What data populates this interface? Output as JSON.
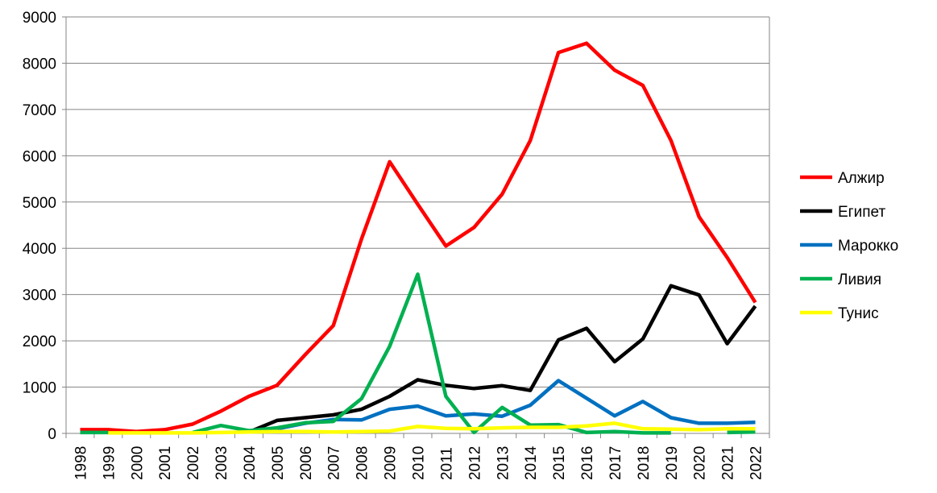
{
  "chart_data": {
    "type": "line",
    "title": "",
    "xlabel": "",
    "ylabel": "",
    "ylim": [
      0,
      9000
    ],
    "yticks": [
      0,
      1000,
      2000,
      3000,
      4000,
      5000,
      6000,
      7000,
      8000,
      9000
    ],
    "grid": true,
    "legend_position": "right",
    "categories": [
      "1998",
      "1999",
      "2000",
      "2001",
      "2002",
      "2003",
      "2004",
      "2005",
      "2006",
      "2007",
      "2008",
      "2009",
      "2010",
      "2011",
      "2012",
      "2013",
      "2014",
      "2015",
      "2016",
      "2017",
      "2018",
      "2019",
      "2020",
      "2021",
      "2022"
    ],
    "series": [
      {
        "name": "Алжир",
        "color": "#FF0000",
        "values": [
          80,
          80,
          40,
          80,
          200,
          480,
          800,
          1040,
          1700,
          2330,
          4200,
          5870,
          4950,
          4050,
          4450,
          5170,
          6330,
          8230,
          8430,
          7850,
          7520,
          6330,
          4680,
          3800,
          2830
        ]
      },
      {
        "name": "Египет",
        "color": "#000000",
        "values": [
          null,
          null,
          null,
          null,
          null,
          null,
          30,
          280,
          340,
          400,
          520,
          800,
          1160,
          1040,
          970,
          1030,
          930,
          2020,
          2270,
          1550,
          2040,
          3190,
          2990,
          1940,
          2750
        ]
      },
      {
        "name": "Марокко",
        "color": "#0070C0",
        "values": [
          null,
          null,
          null,
          null,
          null,
          null,
          null,
          100,
          220,
          300,
          290,
          520,
          590,
          380,
          420,
          370,
          610,
          1140,
          760,
          380,
          690,
          340,
          220,
          220,
          240
        ]
      },
      {
        "name": "Ливия",
        "color": "#00B050",
        "values": [
          20,
          20,
          null,
          null,
          20,
          170,
          60,
          120,
          230,
          260,
          750,
          1880,
          3440,
          800,
          20,
          560,
          180,
          190,
          20,
          40,
          10,
          10,
          null,
          20,
          30
        ]
      },
      {
        "name": "Тунис",
        "color": "#FFFF00",
        "values": [
          null,
          10,
          10,
          10,
          10,
          20,
          30,
          40,
          40,
          30,
          40,
          50,
          150,
          110,
          100,
          120,
          130,
          130,
          160,
          220,
          100,
          90,
          80,
          100,
          100
        ]
      }
    ]
  }
}
